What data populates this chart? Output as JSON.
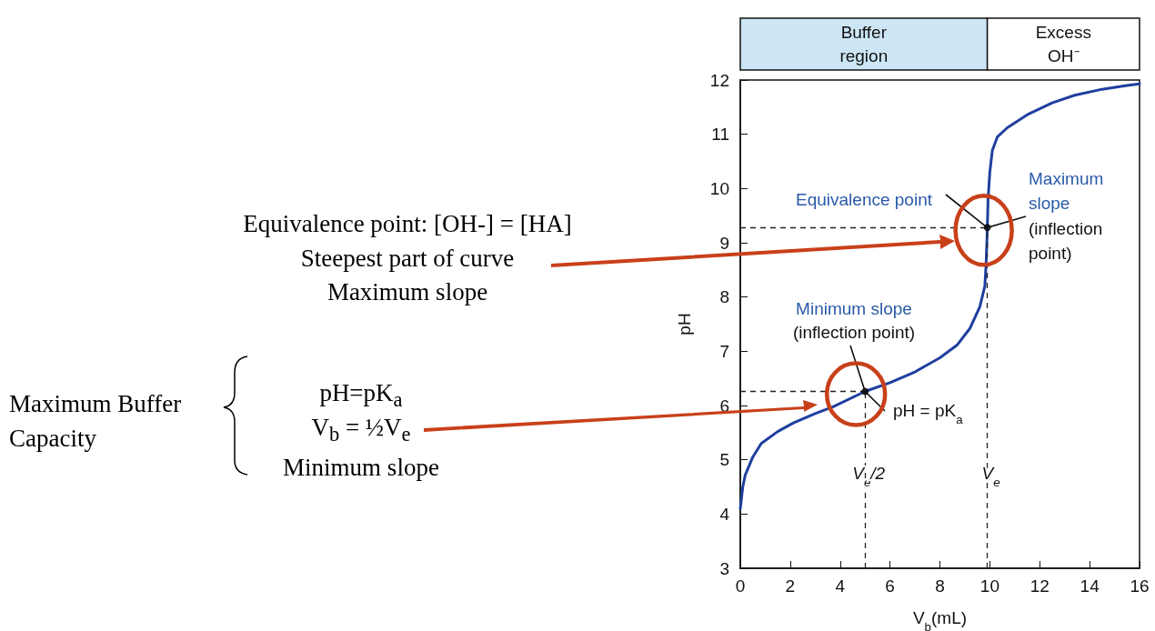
{
  "chart_data": {
    "type": "line",
    "xlabel": "V$_{b}$(mL)",
    "ylabel": "pH",
    "xlim": [
      0,
      16
    ],
    "xticks": [
      0,
      2,
      4,
      6,
      8,
      10,
      12,
      14,
      16
    ],
    "ylim": [
      3,
      12
    ],
    "yticks": [
      3,
      4,
      5,
      6,
      7,
      8,
      9,
      10,
      11,
      12
    ],
    "grid": false,
    "marker": "none",
    "line_style": "solid",
    "series": [
      {
        "color": "#1f3f9e",
        "x": [
          0,
          0.1,
          0.2,
          0.5,
          0.84,
          1.5,
          2.13,
          3,
          3.74,
          5,
          6,
          7,
          8,
          8.7,
          9.2,
          9.6,
          9.8,
          9.85,
          9.88,
          9.9,
          9.93,
          10,
          10.1,
          10.3,
          10.7,
          11.5,
          12.5,
          13.4,
          14.5,
          15.5,
          16
        ],
        "values": [
          4.1,
          4.5,
          4.72,
          5.05,
          5.3,
          5.52,
          5.68,
          5.85,
          5.98,
          6.26,
          6.42,
          6.62,
          6.88,
          7.12,
          7.42,
          7.82,
          8.2,
          8.6,
          9.0,
          9.28,
          9.8,
          10.3,
          10.7,
          10.95,
          11.12,
          11.36,
          11.58,
          11.72,
          11.83,
          11.9,
          11.93
        ]
      },
      {
        "type": "scatter",
        "color": "#000000",
        "marker": "circle",
        "x": [
          5,
          9.9
        ],
        "values": [
          6.26,
          9.28
        ]
      }
    ],
    "ref_lines": [
      {
        "axis": "x",
        "value": 5,
        "label": "V$_{e}$/2",
        "line_style": "dashed"
      },
      {
        "axis": "x",
        "value": 9.9,
        "label": "V$_{e}$",
        "line_style": "dashed"
      },
      {
        "axis": "y",
        "value": 6.26,
        "line_style": "dashed"
      },
      {
        "axis": "y",
        "value": 9.28,
        "line_style": "dashed"
      }
    ],
    "annotations": [
      "Equivalence point: [OH-] = [HA]",
      "Steepest part of curve",
      "Maximum slope",
      "Maximum Buffer Capacity",
      "pH=pK$_{a}$",
      "V$_{b}$ = ½V$_{e}$",
      "Minimum slope",
      "Equivalence point",
      "Maximum slope",
      "(inflection point)",
      "Minimum slope",
      "(inflection point)",
      "pH = pK$_{a}$",
      "Buffer region",
      "Excess OH⁻"
    ]
  }
}
